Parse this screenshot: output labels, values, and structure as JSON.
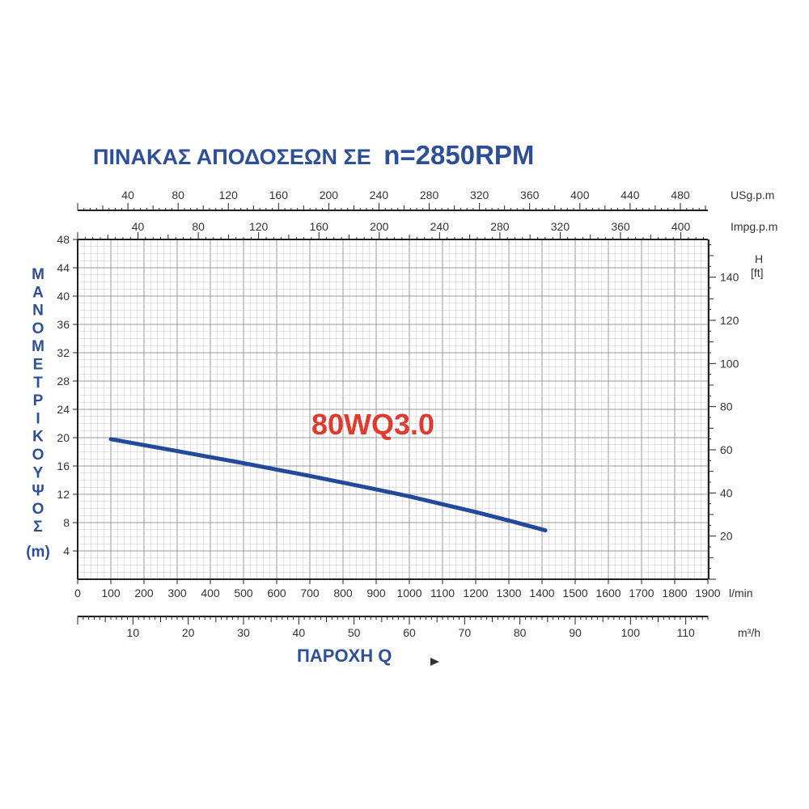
{
  "title": {
    "prefix": "ΠΙΝΑΚΑΣ ΑΠΟΔΟΣΕΩΝ ΣΕ",
    "speed": "n=2850RPM"
  },
  "model_label": "80WQ3.0",
  "y_axis_label": {
    "letters": [
      "Μ",
      "Α",
      "Ν",
      "Ο",
      "Μ",
      "Ε",
      "Τ",
      "Ρ",
      "Ι",
      "Κ",
      "Ο",
      "Υ",
      "Ψ",
      "Ο",
      "Σ"
    ],
    "unit": "(m)"
  },
  "x_axis_label": "ΠΑΡΟΧΗ Q",
  "colors": {
    "curve": "#23499b",
    "title": "#2d4f9a",
    "model": "#e03a2f",
    "grid": "#c8c8c8"
  },
  "chart_data": {
    "type": "line",
    "x_axis": {
      "unit": "l/min",
      "ticks": [
        0,
        100,
        200,
        300,
        400,
        500,
        600,
        700,
        800,
        900,
        1000,
        1100,
        1200,
        1300,
        1400,
        1500,
        1600,
        1700,
        1800,
        1900
      ],
      "range": [
        0,
        1900
      ]
    },
    "y_axis": {
      "unit": "m",
      "ticks": [
        4,
        8,
        12,
        16,
        20,
        24,
        28,
        32,
        36,
        40,
        44,
        48
      ],
      "range": [
        0,
        48
      ]
    },
    "secondary_axes": {
      "m3h": {
        "unit": "m³/h",
        "ticks": [
          10,
          20,
          30,
          40,
          50,
          60,
          70,
          80,
          90,
          100,
          110
        ]
      },
      "usgpm": {
        "unit": "USg.p.m",
        "ticks": [
          40,
          80,
          120,
          160,
          200,
          240,
          280,
          320,
          360,
          400,
          440,
          480
        ]
      },
      "impgpm": {
        "unit": "Impg.p.m",
        "ticks": [
          40,
          80,
          120,
          160,
          200,
          240,
          280,
          320,
          360,
          400
        ]
      },
      "feet": {
        "unit_top": "H",
        "unit_bottom": "[ft]",
        "ticks": [
          20,
          40,
          60,
          80,
          100,
          120,
          140
        ]
      }
    },
    "series": [
      {
        "name": "80WQ3.0",
        "x": [
          100,
          200,
          300,
          400,
          500,
          600,
          700,
          800,
          900,
          1000,
          1100,
          1200,
          1300,
          1410
        ],
        "y": [
          19.8,
          18.95,
          18.1,
          17.25,
          16.4,
          15.5,
          14.6,
          13.65,
          12.7,
          11.7,
          10.6,
          9.5,
          8.3,
          6.9
        ]
      }
    ],
    "grid": true
  }
}
